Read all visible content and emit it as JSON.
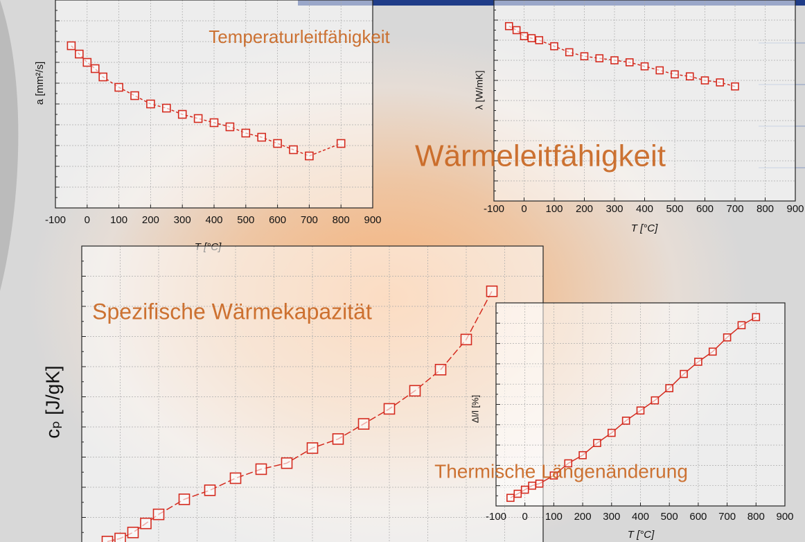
{
  "chart_data": [
    {
      "type": "line",
      "title": "Temperaturleitfähigkeit",
      "xlabel": "T [°C]",
      "ylabel": "a [mm²/s]",
      "x": [
        -50,
        -25,
        0,
        25,
        50,
        100,
        150,
        200,
        250,
        300,
        350,
        400,
        450,
        500,
        550,
        600,
        650,
        700,
        800
      ],
      "values": [
        7.8,
        7.4,
        7.0,
        6.7,
        6.3,
        5.8,
        5.4,
        5.0,
        4.8,
        4.5,
        4.3,
        4.1,
        3.9,
        3.6,
        3.4,
        3.1,
        2.8,
        2.5,
        3.1
      ],
      "color": "#d42a1e",
      "xlim": [
        -100,
        900
      ],
      "xticks": [
        -100,
        0,
        100,
        200,
        300,
        400,
        500,
        600,
        700,
        800,
        900
      ],
      "ylim": [
        0,
        10
      ],
      "grid": true
    },
    {
      "type": "line",
      "title": "Wärmeleitfähigkeit",
      "xlabel": "T [°C]",
      "ylabel": "λ [W/mK]",
      "x": [
        -50,
        -25,
        0,
        25,
        50,
        100,
        150,
        200,
        250,
        300,
        350,
        400,
        450,
        500,
        550,
        600,
        650,
        700
      ],
      "values": [
        8.7,
        8.5,
        8.2,
        8.1,
        8.0,
        7.7,
        7.4,
        7.2,
        7.1,
        7.0,
        6.9,
        6.7,
        6.5,
        6.3,
        6.2,
        6.0,
        5.9,
        5.7
      ],
      "color": "#d42a1e",
      "xlim": [
        -100,
        900
      ],
      "xticks": [
        -100,
        0,
        100,
        200,
        300,
        400,
        500,
        600,
        700,
        800,
        900
      ],
      "ylim": [
        0,
        10
      ],
      "grid": true
    },
    {
      "type": "line",
      "title": "Spezifische Wärmekapazität",
      "ylabel": "cₚ [J/gK]",
      "x": [
        -50,
        -25,
        0,
        25,
        50,
        100,
        150,
        200,
        250,
        300,
        350,
        400,
        450,
        500,
        550,
        600,
        650,
        700
      ],
      "values": [
        0.2,
        0.3,
        0.5,
        0.8,
        1.1,
        1.6,
        1.9,
        2.3,
        2.6,
        2.8,
        3.3,
        3.6,
        4.1,
        4.6,
        5.2,
        5.9,
        6.9,
        8.5
      ],
      "color": "#d42a1e",
      "xlim": [
        -100,
        800
      ],
      "ylim": [
        0,
        10
      ],
      "grid": true
    },
    {
      "type": "line",
      "title": "Thermische Längenänderung",
      "xlabel": "T [°C]",
      "ylabel": "Δl/l [%]",
      "x": [
        -50,
        -25,
        0,
        25,
        50,
        100,
        150,
        200,
        250,
        300,
        350,
        400,
        450,
        500,
        550,
        600,
        650,
        700,
        750,
        800
      ],
      "values": [
        0.4,
        0.6,
        0.8,
        1.0,
        1.1,
        1.5,
        2.1,
        2.5,
        3.1,
        3.6,
        4.2,
        4.7,
        5.2,
        5.8,
        6.5,
        7.1,
        7.6,
        8.3,
        8.9,
        9.3
      ],
      "color": "#d42a1e",
      "xlim": [
        -100,
        900
      ],
      "xticks": [
        -100,
        0,
        100,
        200,
        300,
        400,
        500,
        600,
        700,
        800,
        900
      ],
      "ylim": [
        0,
        10
      ],
      "grid": true
    }
  ]
}
